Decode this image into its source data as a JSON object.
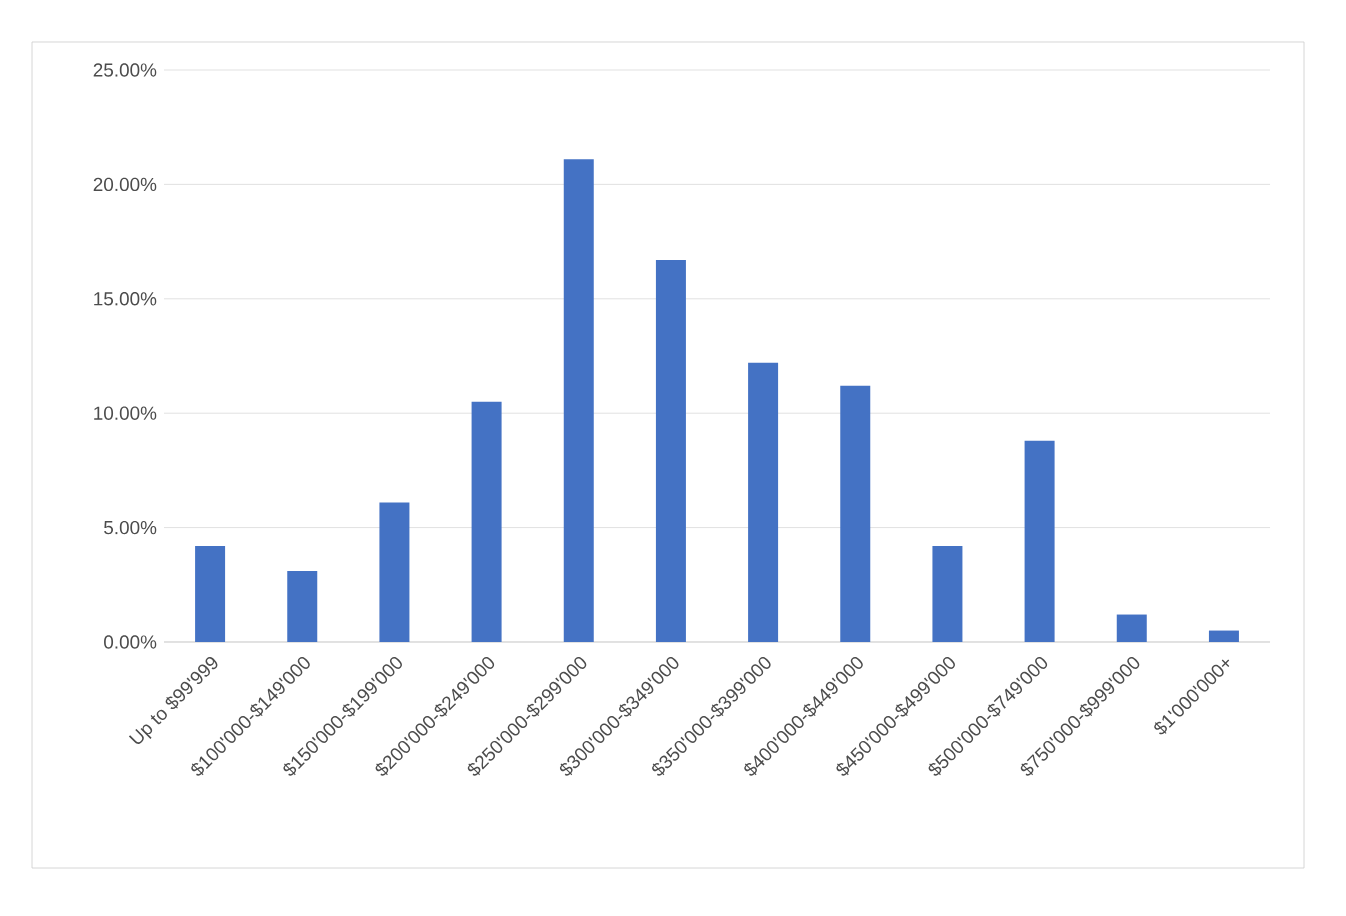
{
  "chart_data": {
    "type": "bar",
    "categories": [
      "Up to $99'999",
      "$100'000-$149'000",
      "$150'000-$199'000",
      "$200'000-$249'000",
      "$250'000-$299'000",
      "$300'000-$349'000",
      "$350'000-$399'000",
      "$400'000-$449'000",
      "$450'000-$499'000",
      "$500'000-$749'000",
      "$750'000-$999'000",
      "$1'000'000+"
    ],
    "values": [
      4.2,
      3.1,
      6.1,
      10.5,
      21.1,
      16.7,
      12.2,
      11.2,
      4.2,
      8.8,
      1.2,
      0.5
    ],
    "color": "#4472c4",
    "ylim": [
      0,
      25
    ],
    "yticks": [
      {
        "value": 0,
        "label": "0.00%"
      },
      {
        "value": 5,
        "label": "5.00%"
      },
      {
        "value": 10,
        "label": "10.00%"
      },
      {
        "value": 15,
        "label": "15.00%"
      },
      {
        "value": 20,
        "label": "20.00%"
      },
      {
        "value": 25,
        "label": "25.00%"
      }
    ],
    "grid": "y"
  }
}
